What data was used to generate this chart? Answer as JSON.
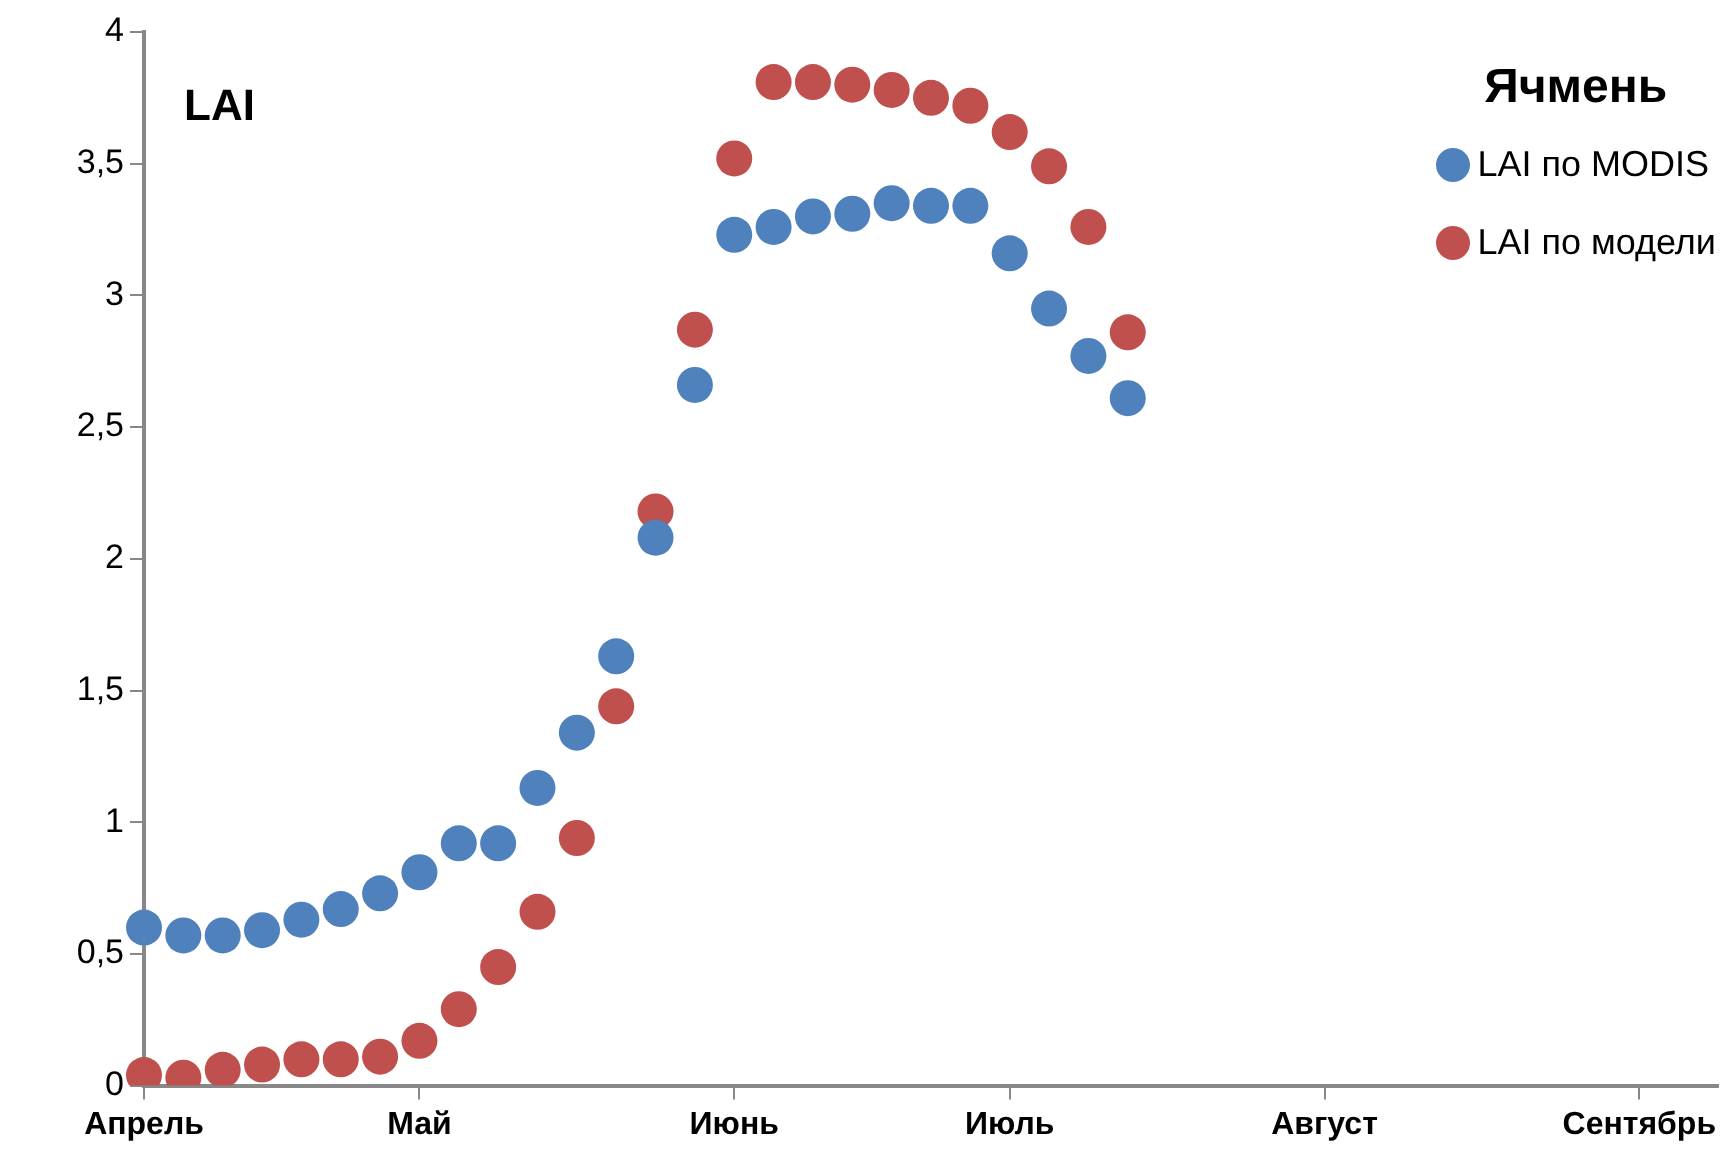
{
  "chart_data": {
    "type": "scatter",
    "ylabel": "LAI",
    "legend_title": "Ячмень",
    "categories": [
      "Апрель",
      null,
      null,
      null,
      null,
      null,
      null,
      "Май",
      null,
      null,
      null,
      null,
      null,
      null,
      null,
      "Июнь",
      null,
      null,
      null,
      null,
      null,
      null,
      "Июль",
      null,
      null,
      null,
      null,
      null,
      null,
      null,
      "Август",
      null,
      null,
      null,
      null,
      null,
      null,
      null,
      "Сентябрь",
      null,
      null
    ],
    "series": [
      {
        "name": "LAI по MODIS",
        "color": "#4f81bd",
        "values": [
          0.6,
          0.57,
          0.57,
          0.59,
          0.63,
          0.67,
          0.73,
          0.81,
          0.92,
          0.92,
          1.13,
          1.34,
          1.63,
          2.08,
          2.66,
          3.23,
          3.26,
          3.3,
          3.31,
          3.35,
          3.34,
          3.34,
          3.16,
          2.95,
          2.77,
          2.61,
          null,
          null,
          null,
          null,
          null,
          null,
          null,
          null,
          null,
          null,
          null,
          null,
          null,
          null,
          null
        ]
      },
      {
        "name": "LAI по модели",
        "color": "#c0504d",
        "values": [
          0.04,
          0.03,
          0.06,
          0.08,
          0.1,
          0.1,
          0.11,
          0.17,
          0.29,
          0.45,
          0.66,
          0.94,
          1.44,
          2.18,
          2.87,
          3.52,
          3.81,
          3.81,
          3.8,
          3.78,
          3.75,
          3.72,
          3.62,
          3.49,
          3.26,
          2.86,
          null,
          null,
          null,
          null,
          null,
          null,
          null,
          null,
          null,
          null,
          null,
          null,
          null,
          null,
          null
        ]
      }
    ],
    "ylim": [
      0,
      4
    ],
    "yticks": [
      0,
      {
        "value": 0.5,
        "label": "0,5"
      },
      1,
      {
        "value": 1.5,
        "label": "1,5"
      },
      2,
      {
        "value": 2.5,
        "label": "2,5"
      },
      3,
      {
        "value": 3.5,
        "label": "3,5"
      },
      4
    ],
    "grid": false,
    "legend": "top right",
    "marker": "circle"
  }
}
